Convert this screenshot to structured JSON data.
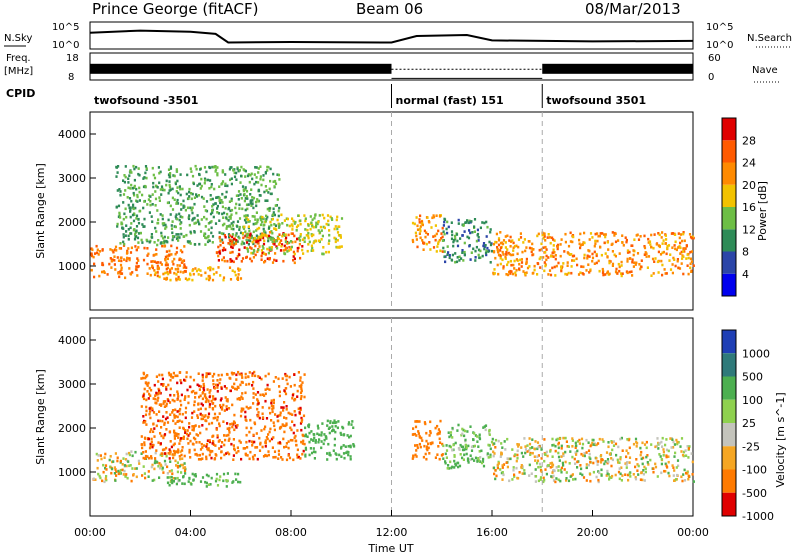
{
  "header": {
    "station": "Prince George (fitACF)",
    "beam": "Beam 06",
    "date": "08/Mar/2013"
  },
  "noise_panel": {
    "left_label": "N.Sky",
    "right_label": "N.Search",
    "left_ticks": [
      "10^5",
      "10^0"
    ],
    "right_ticks": [
      "10^5",
      "10^0"
    ]
  },
  "freq_panel": {
    "left_label_1": "Freq.",
    "left_label_2": "[MHz]",
    "right_label": "Nave",
    "left_ticks": [
      "18",
      "8"
    ],
    "right_ticks": [
      "60",
      "0"
    ]
  },
  "cpid": {
    "label": "CPID",
    "segments": [
      {
        "start": 0,
        "end": 12,
        "text": "twofsound -3501"
      },
      {
        "start": 12,
        "end": 18,
        "text": "normal (fast) 151"
      },
      {
        "start": 18,
        "end": 24,
        "text": "twofsound 3501"
      }
    ]
  },
  "time_axis": {
    "label": "Time UT",
    "ticks": [
      "00:00",
      "04:00",
      "08:00",
      "12:00",
      "16:00",
      "20:00",
      "00:00"
    ]
  },
  "range_axis": {
    "label": "Slant Range [km]",
    "ticks": [
      "1000",
      "2000",
      "3000",
      "4000"
    ]
  },
  "power_scale": {
    "label": "Power [dB]",
    "ticks": [
      "4",
      "8",
      "12",
      "16",
      "20",
      "24",
      "28"
    ],
    "colors": [
      "#0000ee",
      "#2b45a8",
      "#2e8b57",
      "#6dbe45",
      "#f2c200",
      "#ff8a00",
      "#ff5a00",
      "#e00000"
    ]
  },
  "velocity_scale": {
    "label": "Velocity [m s^-1]",
    "ticks": [
      "1000",
      "500",
      "100",
      "25",
      "-25",
      "-100",
      "-500",
      "-1000"
    ],
    "colors": [
      "#1f3fb5",
      "#2f7a7a",
      "#4caf50",
      "#8fd14f",
      "#c4c4bc",
      "#f5a623",
      "#ff7a00",
      "#e00000"
    ]
  },
  "chart_data": [
    {
      "type": "line",
      "title": "N.Sky / N.Search noise",
      "x": [
        0,
        2,
        4,
        5,
        5.5,
        8,
        12,
        13,
        15,
        16,
        20,
        24
      ],
      "series": [
        {
          "name": "N.Sky",
          "values": [
            3.0,
            3.4,
            3.2,
            2.8,
            1.2,
            1.3,
            1.2,
            2.4,
            2.6,
            1.6,
            1.4,
            1.5
          ]
        }
      ],
      "ylim": [
        0,
        5
      ],
      "xlim": [
        0,
        24
      ]
    },
    {
      "type": "area",
      "title": "Freq. / Nave",
      "x": [
        0,
        12,
        12,
        18,
        18,
        24
      ],
      "series": [
        {
          "name": "Freq.",
          "values": [
            11,
            11,
            8,
            8,
            11,
            11
          ]
        },
        {
          "name": "Nave",
          "values": [
            29,
            29,
            38,
            38,
            29,
            29
          ]
        }
      ],
      "ylim": [
        8,
        18
      ],
      "xlim": [
        0,
        24
      ]
    },
    {
      "type": "heatmap",
      "title": "Power [dB]",
      "xlabel": "Time UT",
      "ylabel": "Slant Range [km]",
      "xlim": [
        0,
        24
      ],
      "ylim": [
        0,
        4500
      ],
      "regions": [
        {
          "t0": 0.0,
          "t1": 3.8,
          "r0": 750,
          "r1": 1500,
          "level": 24
        },
        {
          "t0": 1.0,
          "t1": 7.5,
          "r0": 1500,
          "r1": 3300,
          "level": 12
        },
        {
          "t0": 2.5,
          "t1": 6.0,
          "r0": 700,
          "r1": 1000,
          "level": 20
        },
        {
          "t0": 5.0,
          "t1": 8.5,
          "r0": 1100,
          "r1": 1800,
          "level": 26
        },
        {
          "t0": 6.0,
          "t1": 10.0,
          "r0": 1300,
          "r1": 2200,
          "level": 16
        },
        {
          "t0": 12.8,
          "t1": 14.0,
          "r0": 1300,
          "r1": 2200,
          "level": 22
        },
        {
          "t0": 14.0,
          "t1": 16.0,
          "r0": 1100,
          "r1": 2100,
          "level": 10
        },
        {
          "t0": 16.0,
          "t1": 24.0,
          "r0": 800,
          "r1": 1800,
          "level": 22
        }
      ]
    },
    {
      "type": "heatmap",
      "title": "Velocity [m s^-1]",
      "xlabel": "Time UT",
      "ylabel": "Slant Range [km]",
      "xlim": [
        0,
        24
      ],
      "ylim": [
        0,
        4500
      ],
      "regions": [
        {
          "t0": 0.0,
          "t1": 3.8,
          "r0": 800,
          "r1": 1500,
          "level": 0
        },
        {
          "t0": 2.0,
          "t1": 8.5,
          "r0": 1300,
          "r1": 3300,
          "level": -400
        },
        {
          "t0": 3.0,
          "t1": 6.0,
          "r0": 700,
          "r1": 1000,
          "level": 200
        },
        {
          "t0": 8.5,
          "t1": 10.5,
          "r0": 1300,
          "r1": 2200,
          "level": 300
        },
        {
          "t0": 12.8,
          "t1": 14.0,
          "r0": 1300,
          "r1": 2200,
          "level": -300
        },
        {
          "t0": 14.0,
          "t1": 16.0,
          "r0": 1100,
          "r1": 2100,
          "level": 150
        },
        {
          "t0": 16.0,
          "t1": 24.0,
          "r0": 800,
          "r1": 1800,
          "level": 0
        }
      ]
    }
  ]
}
